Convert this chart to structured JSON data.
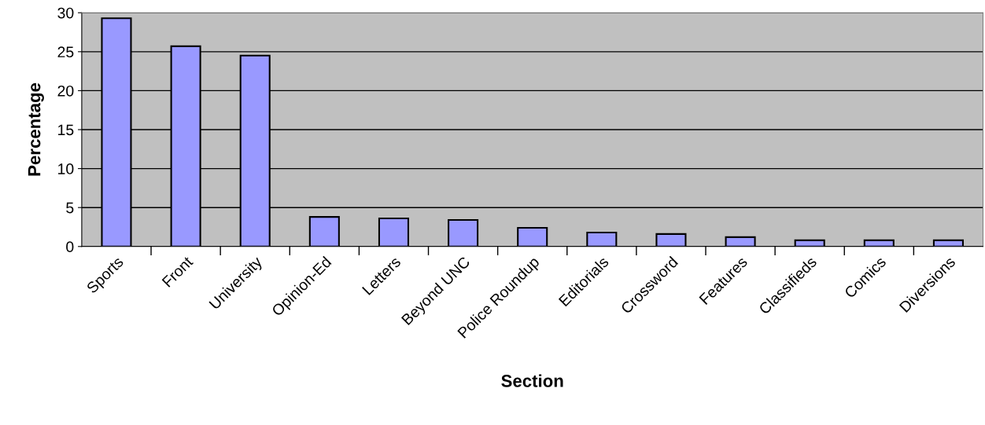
{
  "chart_data": {
    "type": "bar",
    "xlabel": "Section",
    "ylabel": "Percentage",
    "categories": [
      "Sports",
      "Front",
      "University",
      "Opinion-Ed",
      "Letters",
      "Beyond UNC",
      "Police Roundup",
      "Editorials",
      "Crossword",
      "Features",
      "Classifieds",
      "Comics",
      "Diversions"
    ],
    "values": [
      29.3,
      25.7,
      24.5,
      3.8,
      3.6,
      3.4,
      2.4,
      1.8,
      1.6,
      1.2,
      0.8,
      0.8,
      0.8
    ],
    "color": "#9999ff",
    "ylim": [
      0,
      30
    ],
    "yticks": [
      0,
      5,
      10,
      15,
      20,
      25,
      30
    ],
    "grid": "y"
  }
}
